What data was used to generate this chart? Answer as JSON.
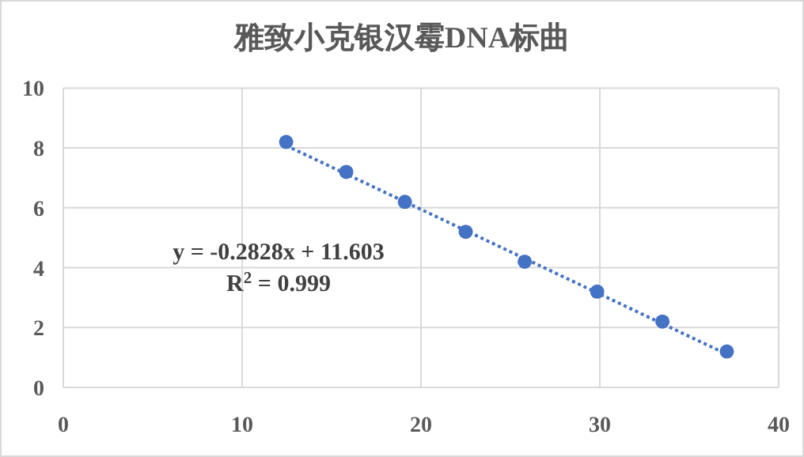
{
  "chart_data": {
    "type": "scatter",
    "title": "雅致小克银汉霉DNA标曲",
    "series": [
      {
        "color": "#4472c4",
        "marker": "circle",
        "x": [
          12.46,
          15.82,
          19.1,
          22.5,
          25.8,
          29.85,
          33.5,
          37.1
        ],
        "values": [
          8.2,
          7.2,
          6.2,
          5.2,
          4.2,
          3.2,
          2.2,
          1.2
        ]
      },
      {
        "type": "line",
        "color": "#4472c4",
        "marker": "none",
        "line_style": "dotted",
        "x": [
          12.46,
          37.1
        ],
        "values": [
          8.08,
          1.11
        ]
      }
    ],
    "xlim": [
      0,
      40
    ],
    "xticks": [
      0,
      10,
      20,
      30,
      40
    ],
    "ylim": [
      0,
      10
    ],
    "yticks": [
      0,
      2,
      4,
      6,
      8,
      10
    ],
    "grid": true,
    "annotations": [
      "y = -0.2828x + 11.603",
      "R$^{2}$ = 0.999"
    ]
  }
}
